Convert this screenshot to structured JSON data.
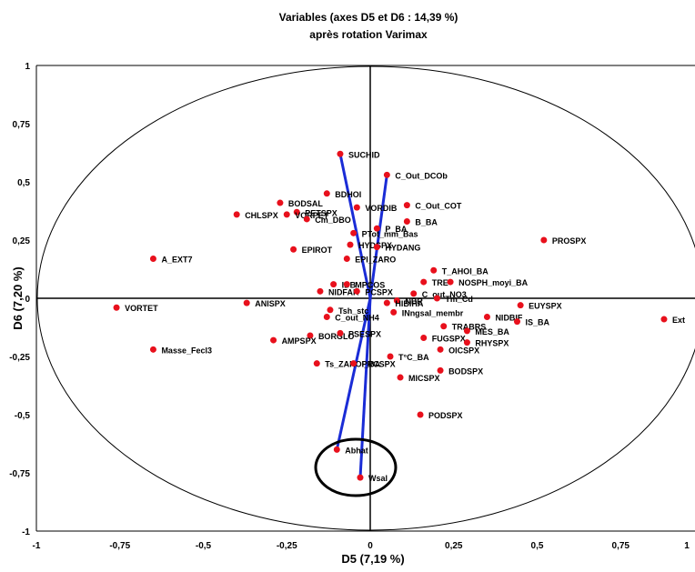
{
  "chart_data": {
    "type": "scatter",
    "title_line1": "Variables (axes D5 et D6 : 14,39 %)",
    "title_line2": "après rotation Varimax",
    "xlabel": "D5 (7,19 %)",
    "ylabel": "D6 (7,20 %)",
    "xlim": [
      -1,
      1
    ],
    "ylim": [
      -1,
      1
    ],
    "x_ticks": [
      "-1",
      "-0,75",
      "-0,5",
      "-0,25",
      "0",
      "0,25",
      "0,5",
      "0,75",
      "1"
    ],
    "y_ticks": [
      "1",
      "0,75",
      "0,5",
      "0,25",
      "0",
      "-0,25",
      "-0,5",
      "-0,75",
      "-1"
    ],
    "point_color": "#e8101c",
    "vector_color": "#1a2cd6",
    "points": [
      {
        "label": "SUCHID",
        "x": -0.09,
        "y": 0.62
      },
      {
        "label": "C_Out_DCOb",
        "x": 0.05,
        "y": 0.53
      },
      {
        "label": "BDHOI",
        "x": -0.13,
        "y": 0.45
      },
      {
        "label": "C_Out_COT",
        "x": 0.11,
        "y": 0.4
      },
      {
        "label": "BODSAL",
        "x": -0.27,
        "y": 0.41
      },
      {
        "label": "PETSPX",
        "x": -0.22,
        "y": 0.37
      },
      {
        "label": "VORDIB",
        "x": -0.04,
        "y": 0.39
      },
      {
        "label": "CHLSPX",
        "x": -0.4,
        "y": 0.36
      },
      {
        "label": "VORPET",
        "x": -0.25,
        "y": 0.36
      },
      {
        "label": "Cm_DBO",
        "x": -0.19,
        "y": 0.34
      },
      {
        "label": "B_BA",
        "x": 0.11,
        "y": 0.33
      },
      {
        "label": "P_BA",
        "x": 0.02,
        "y": 0.3
      },
      {
        "label": "PTot_mm_Bas",
        "x": -0.05,
        "y": 0.28
      },
      {
        "label": "PROSPX",
        "x": 0.52,
        "y": 0.25
      },
      {
        "label": "EPIROT",
        "x": -0.23,
        "y": 0.21
      },
      {
        "label": "HYDSPX",
        "x": -0.06,
        "y": 0.23
      },
      {
        "label": "HYDANG",
        "x": 0.02,
        "y": 0.22
      },
      {
        "label": "A_EXT7",
        "x": -0.65,
        "y": 0.17
      },
      {
        "label": "EPI_ZARO",
        "x": -0.07,
        "y": 0.17
      },
      {
        "label": "T_AHOI_BA",
        "x": 0.19,
        "y": 0.12
      },
      {
        "label": "TRE",
        "x": 0.16,
        "y": 0.07
      },
      {
        "label": "NOSPH_moyi_BA",
        "x": 0.24,
        "y": 0.07
      },
      {
        "label": "IDB",
        "x": -0.11,
        "y": 0.06
      },
      {
        "label": "MPCOS",
        "x": -0.07,
        "y": 0.06
      },
      {
        "label": "NIDFAR",
        "x": -0.15,
        "y": 0.03
      },
      {
        "label": "PCSPX",
        "x": -0.04,
        "y": 0.03
      },
      {
        "label": "C_out_NO3",
        "x": 0.13,
        "y": 0.02
      },
      {
        "label": "Tm_Cd",
        "x": 0.2,
        "y": 0.0
      },
      {
        "label": "NBR",
        "x": 0.08,
        "y": -0.01
      },
      {
        "label": "ANISPX",
        "x": -0.37,
        "y": -0.02
      },
      {
        "label": "HIBIHA",
        "x": 0.05,
        "y": -0.02
      },
      {
        "label": "EUYSPX",
        "x": 0.45,
        "y": -0.03
      },
      {
        "label": "VORTET",
        "x": -0.76,
        "y": -0.04
      },
      {
        "label": "Tsh_stc",
        "x": -0.12,
        "y": -0.05
      },
      {
        "label": "INngsal_membr",
        "x": 0.07,
        "y": -0.06
      },
      {
        "label": "C_out_NH4",
        "x": -0.13,
        "y": -0.08
      },
      {
        "label": "NIDBIF",
        "x": 0.35,
        "y": -0.08
      },
      {
        "label": "IS_BA",
        "x": 0.44,
        "y": -0.1
      },
      {
        "label": "Ext",
        "x": 0.88,
        "y": -0.09
      },
      {
        "label": "TRABRS",
        "x": 0.22,
        "y": -0.12
      },
      {
        "label": "MES_BA",
        "x": 0.29,
        "y": -0.14
      },
      {
        "label": "BORGLO",
        "x": -0.18,
        "y": -0.16
      },
      {
        "label": "PSESPX",
        "x": -0.09,
        "y": -0.15
      },
      {
        "label": "AMPSPX",
        "x": -0.29,
        "y": -0.18
      },
      {
        "label": "FUGSPX",
        "x": 0.16,
        "y": -0.17
      },
      {
        "label": "RHYSPX",
        "x": 0.29,
        "y": -0.19
      },
      {
        "label": "Masse_Fecl3",
        "x": -0.65,
        "y": -0.22
      },
      {
        "label": "OICSPX",
        "x": 0.21,
        "y": -0.22
      },
      {
        "label": "T°C_BA",
        "x": 0.06,
        "y": -0.25
      },
      {
        "label": "Ts_ZAHOI_BA",
        "x": -0.16,
        "y": -0.28
      },
      {
        "label": "PRCSPX",
        "x": -0.05,
        "y": -0.28
      },
      {
        "label": "BODSPX",
        "x": 0.21,
        "y": -0.31
      },
      {
        "label": "MICSPX",
        "x": 0.09,
        "y": -0.34
      },
      {
        "label": "PODSPX",
        "x": 0.15,
        "y": -0.5
      },
      {
        "label": "Abhat",
        "x": -0.1,
        "y": -0.65
      },
      {
        "label": "Wsal",
        "x": -0.03,
        "y": -0.77
      }
    ],
    "vectors": [
      {
        "label": "SUCHID",
        "x": -0.09,
        "y": 0.62
      },
      {
        "label": "C_Out_DCOb",
        "x": 0.05,
        "y": 0.53
      },
      {
        "label": "Abhat",
        "x": -0.1,
        "y": -0.65
      },
      {
        "label": "Wsal",
        "x": -0.03,
        "y": -0.77
      }
    ],
    "highlight_circle_center": [
      -0.06,
      -0.73
    ]
  }
}
